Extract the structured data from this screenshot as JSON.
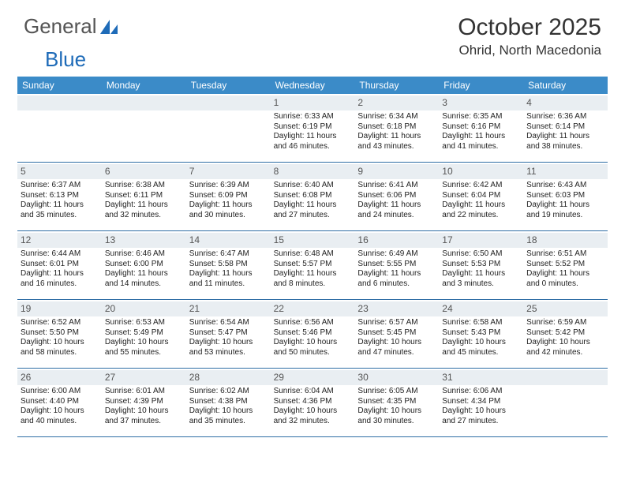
{
  "logo": {
    "text_a": "General",
    "text_b": "Blue"
  },
  "title": "October 2025",
  "location": "Ohrid, North Macedonia",
  "colors": {
    "header_bg": "#3b8bc8",
    "row_border": "#2f6ea5",
    "daynum_bg": "#e9eef2",
    "text": "#222222"
  },
  "days_of_week": [
    "Sunday",
    "Monday",
    "Tuesday",
    "Wednesday",
    "Thursday",
    "Friday",
    "Saturday"
  ],
  "weeks": [
    [
      {
        "n": "",
        "empty": true
      },
      {
        "n": "",
        "empty": true
      },
      {
        "n": "",
        "empty": true
      },
      {
        "n": "1",
        "sr": "6:33 AM",
        "ss": "6:19 PM",
        "dl": "11 hours and 46 minutes."
      },
      {
        "n": "2",
        "sr": "6:34 AM",
        "ss": "6:18 PM",
        "dl": "11 hours and 43 minutes."
      },
      {
        "n": "3",
        "sr": "6:35 AM",
        "ss": "6:16 PM",
        "dl": "11 hours and 41 minutes."
      },
      {
        "n": "4",
        "sr": "6:36 AM",
        "ss": "6:14 PM",
        "dl": "11 hours and 38 minutes."
      }
    ],
    [
      {
        "n": "5",
        "sr": "6:37 AM",
        "ss": "6:13 PM",
        "dl": "11 hours and 35 minutes."
      },
      {
        "n": "6",
        "sr": "6:38 AM",
        "ss": "6:11 PM",
        "dl": "11 hours and 32 minutes."
      },
      {
        "n": "7",
        "sr": "6:39 AM",
        "ss": "6:09 PM",
        "dl": "11 hours and 30 minutes."
      },
      {
        "n": "8",
        "sr": "6:40 AM",
        "ss": "6:08 PM",
        "dl": "11 hours and 27 minutes."
      },
      {
        "n": "9",
        "sr": "6:41 AM",
        "ss": "6:06 PM",
        "dl": "11 hours and 24 minutes."
      },
      {
        "n": "10",
        "sr": "6:42 AM",
        "ss": "6:04 PM",
        "dl": "11 hours and 22 minutes."
      },
      {
        "n": "11",
        "sr": "6:43 AM",
        "ss": "6:03 PM",
        "dl": "11 hours and 19 minutes."
      }
    ],
    [
      {
        "n": "12",
        "sr": "6:44 AM",
        "ss": "6:01 PM",
        "dl": "11 hours and 16 minutes."
      },
      {
        "n": "13",
        "sr": "6:46 AM",
        "ss": "6:00 PM",
        "dl": "11 hours and 14 minutes."
      },
      {
        "n": "14",
        "sr": "6:47 AM",
        "ss": "5:58 PM",
        "dl": "11 hours and 11 minutes."
      },
      {
        "n": "15",
        "sr": "6:48 AM",
        "ss": "5:57 PM",
        "dl": "11 hours and 8 minutes."
      },
      {
        "n": "16",
        "sr": "6:49 AM",
        "ss": "5:55 PM",
        "dl": "11 hours and 6 minutes."
      },
      {
        "n": "17",
        "sr": "6:50 AM",
        "ss": "5:53 PM",
        "dl": "11 hours and 3 minutes."
      },
      {
        "n": "18",
        "sr": "6:51 AM",
        "ss": "5:52 PM",
        "dl": "11 hours and 0 minutes."
      }
    ],
    [
      {
        "n": "19",
        "sr": "6:52 AM",
        "ss": "5:50 PM",
        "dl": "10 hours and 58 minutes."
      },
      {
        "n": "20",
        "sr": "6:53 AM",
        "ss": "5:49 PM",
        "dl": "10 hours and 55 minutes."
      },
      {
        "n": "21",
        "sr": "6:54 AM",
        "ss": "5:47 PM",
        "dl": "10 hours and 53 minutes."
      },
      {
        "n": "22",
        "sr": "6:56 AM",
        "ss": "5:46 PM",
        "dl": "10 hours and 50 minutes."
      },
      {
        "n": "23",
        "sr": "6:57 AM",
        "ss": "5:45 PM",
        "dl": "10 hours and 47 minutes."
      },
      {
        "n": "24",
        "sr": "6:58 AM",
        "ss": "5:43 PM",
        "dl": "10 hours and 45 minutes."
      },
      {
        "n": "25",
        "sr": "6:59 AM",
        "ss": "5:42 PM",
        "dl": "10 hours and 42 minutes."
      }
    ],
    [
      {
        "n": "26",
        "sr": "6:00 AM",
        "ss": "4:40 PM",
        "dl": "10 hours and 40 minutes."
      },
      {
        "n": "27",
        "sr": "6:01 AM",
        "ss": "4:39 PM",
        "dl": "10 hours and 37 minutes."
      },
      {
        "n": "28",
        "sr": "6:02 AM",
        "ss": "4:38 PM",
        "dl": "10 hours and 35 minutes."
      },
      {
        "n": "29",
        "sr": "6:04 AM",
        "ss": "4:36 PM",
        "dl": "10 hours and 32 minutes."
      },
      {
        "n": "30",
        "sr": "6:05 AM",
        "ss": "4:35 PM",
        "dl": "10 hours and 30 minutes."
      },
      {
        "n": "31",
        "sr": "6:06 AM",
        "ss": "4:34 PM",
        "dl": "10 hours and 27 minutes."
      },
      {
        "n": "",
        "empty": true
      }
    ]
  ],
  "labels": {
    "sunrise": "Sunrise: ",
    "sunset": "Sunset: ",
    "daylight": "Daylight: "
  }
}
